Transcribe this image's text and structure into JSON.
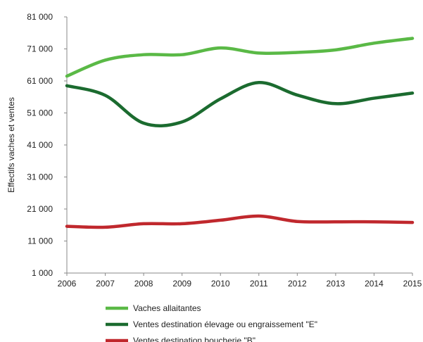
{
  "chart_data": {
    "type": "line",
    "title": "",
    "xlabel": "",
    "ylabel": "Effectifs vaches et ventes",
    "x": [
      2006,
      2007,
      2008,
      2009,
      2010,
      2011,
      2012,
      2013,
      2014,
      2015
    ],
    "ylim": [
      1000,
      81000
    ],
    "yticks": [
      "1 000",
      "11 000",
      "21 000",
      "31 000",
      "41 000",
      "51 000",
      "61 000",
      "71 000",
      "81 000"
    ],
    "yticks_values": [
      1000,
      11000,
      21000,
      31000,
      41000,
      51000,
      61000,
      71000,
      81000
    ],
    "grid": false,
    "legend_position": "bottom",
    "series": [
      {
        "name": "Vaches allaitantes",
        "color": "#5ab946",
        "values": [
          62500,
          67500,
          69200,
          69200,
          71300,
          69700,
          69900,
          70700,
          72800,
          74300
        ]
      },
      {
        "name": "Ventes destination élevage ou engraissement \"E\"",
        "color": "#1b6b2f",
        "values": [
          59500,
          56500,
          47800,
          48200,
          55400,
          60500,
          56600,
          53900,
          55600,
          57200
        ]
      },
      {
        "name": "Ventes destination boucherie \"B\"",
        "color": "#c0282d",
        "values": [
          15600,
          15300,
          16400,
          16400,
          17500,
          18800,
          17100,
          17000,
          17000,
          16800
        ]
      }
    ]
  }
}
